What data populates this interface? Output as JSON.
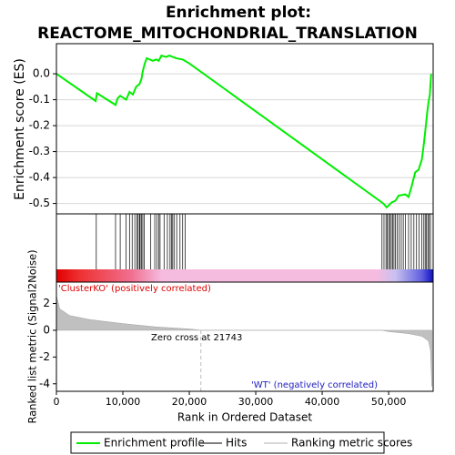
{
  "chart_data": {
    "type": "gsea",
    "title": "Enrichment plot:",
    "subtitle": "REACTOME_MITOCHONDRIAL_TRANSLATION",
    "xlabel": "Rank in Ordered Dataset",
    "xlim": [
      0,
      56700
    ],
    "xticks": [
      0,
      {
        "value": 10000,
        "label": "10,000"
      },
      {
        "value": 20000,
        "label": "20,000"
      },
      {
        "value": 30000,
        "label": "30,000"
      },
      {
        "value": 40000,
        "label": "40,000"
      },
      {
        "value": 50000,
        "label": "50,000"
      }
    ],
    "es": {
      "ylabel": "Enrichment score (ES)",
      "color": "#00ee00",
      "ylim": [
        -0.54,
        0.116
      ],
      "yticks": [
        {
          "value": 0,
          "label": "0.0"
        },
        -0.1,
        -0.2,
        -0.3,
        -0.4,
        -0.5
      ],
      "grid": true,
      "x": [
        0,
        5900,
        6100,
        8900,
        9200,
        9600,
        10500,
        11000,
        11500,
        12000,
        12500,
        12800,
        13000,
        13300,
        13600,
        14500,
        15000,
        15400,
        15800,
        16500,
        17000,
        18000,
        19000,
        20000,
        49200,
        49700,
        50500,
        51000,
        51500,
        52500,
        53000,
        53500,
        54000,
        54500,
        55000,
        55300,
        55600,
        55800,
        56000,
        56200,
        56400
      ],
      "values": [
        0,
        -0.105,
        -0.075,
        -0.12,
        -0.095,
        -0.085,
        -0.1,
        -0.07,
        -0.08,
        -0.05,
        -0.04,
        -0.02,
        0.01,
        0.04,
        0.06,
        0.05,
        0.055,
        0.05,
        0.07,
        0.065,
        0.07,
        0.06,
        0.055,
        0.04,
        -0.5,
        -0.515,
        -0.495,
        -0.49,
        -0.47,
        -0.465,
        -0.475,
        -0.43,
        -0.38,
        -0.37,
        -0.33,
        -0.27,
        -0.2,
        -0.15,
        -0.11,
        -0.08,
        0.0
      ]
    },
    "hits": {
      "color": "#000000",
      "x": [
        6000,
        8900,
        9600,
        10500,
        11000,
        11400,
        11800,
        12100,
        12300,
        12500,
        12600,
        12800,
        13000,
        13200,
        14200,
        14800,
        15100,
        15400,
        15600,
        16200,
        16700,
        17100,
        17300,
        17500,
        17700,
        18100,
        18600,
        19000,
        19400,
        49000,
        49300,
        49600,
        49800,
        50000,
        50200,
        50400,
        50600,
        50800,
        51000,
        51300,
        51600,
        51900,
        52200,
        52500,
        53000,
        53400,
        53800,
        54200,
        54600,
        55000,
        55300,
        55500,
        55700,
        55900,
        56100,
        56300
      ]
    },
    "metric": {
      "ylabel": "Ranked list metric (Signal2Noise)",
      "color": "#c0c0c0",
      "ylim": [
        -4.56,
        3.6
      ],
      "yticks": [
        2,
        0,
        -2,
        -4
      ],
      "x": [
        0,
        500,
        2000,
        5000,
        10000,
        15000,
        20000,
        21743,
        49000,
        50000,
        53000,
        55000,
        56000,
        56300,
        56500
      ],
      "values": [
        2.6,
        1.6,
        1.1,
        0.8,
        0.5,
        0.25,
        0.1,
        0,
        0,
        -0.1,
        -0.25,
        -0.45,
        -0.8,
        -1.5,
        -4.2
      ]
    },
    "zero_cross": 21743,
    "annotations": {
      "positive": "'ClusterKO' (positively correlated)",
      "zero": "Zero cross at 21743",
      "negative": "'WT' (negatively correlated)"
    },
    "legend": [
      "Enrichment profile",
      "Hits",
      "Ranking metric scores"
    ]
  }
}
